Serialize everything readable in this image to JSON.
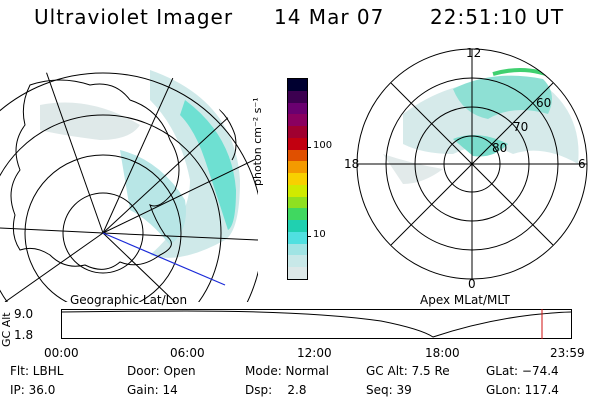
{
  "header": {
    "title": "Ultraviolet Imager",
    "date": "14 Mar 07",
    "time": "22:51:10 UT"
  },
  "left_map": {
    "caption": "Geographic Lat/Lon"
  },
  "right_map": {
    "caption": "Apex MLat/MLT",
    "mlt_labels": {
      "top": "12",
      "left": "18",
      "right": "6",
      "bottom": "0"
    },
    "lat_labels": [
      "60",
      "70",
      "80"
    ]
  },
  "colorbar": {
    "unit_label": "photon cm⁻² s⁻¹",
    "tick_labels": [
      "100",
      "10"
    ],
    "colors": [
      "#000030",
      "#3c0050",
      "#6a0070",
      "#8a0060",
      "#a00030",
      "#c20010",
      "#e05000",
      "#f49a00",
      "#f8d000",
      "#d0ea00",
      "#8fe020",
      "#40d860",
      "#20d0b0",
      "#50e0e0",
      "#a0e4e4",
      "#c8e8e8",
      "#dde8e8"
    ]
  },
  "alt_plot": {
    "axis_title": "GC Alt",
    "y_ticks": [
      "9.0",
      "1.8"
    ],
    "x_ticks": [
      "00:00",
      "06:00",
      "12:00",
      "18:00",
      "23:59"
    ]
  },
  "info": {
    "flt": "Flt: LBHL",
    "ip": "IP: 36.0",
    "door": "Door: Open",
    "gain": "Gain: 14",
    "mode": "Mode: Normal",
    "dsp": "Dsp:    2.8",
    "gcalt": "GC Alt: 7.5 Re",
    "seq": "Seq: 39",
    "glat": "GLat: −74.4",
    "glon": "GLon: 117.4"
  }
}
